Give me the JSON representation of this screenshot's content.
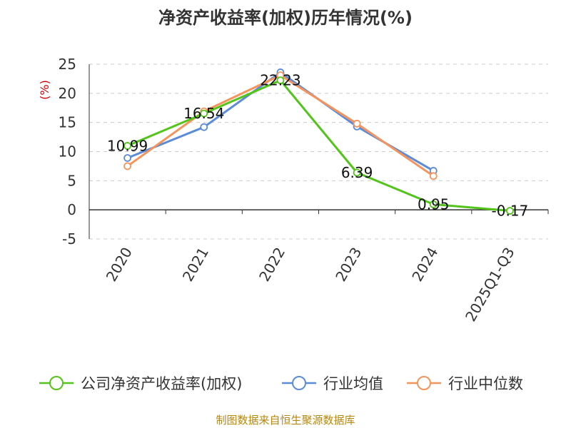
{
  "chart_data": {
    "type": "line",
    "title": "净资产收益率(加权)历年情况(%)",
    "ylabel": "(%)",
    "categories": [
      "2020",
      "2021",
      "2022",
      "2023",
      "2024",
      "2025Q1-Q3"
    ],
    "ylim": [
      -5,
      25
    ],
    "yticks": [
      -5,
      0,
      5,
      10,
      15,
      20,
      25
    ],
    "grid": "horizontal-dashed",
    "legend_position": "bottom",
    "series": [
      {
        "name": "公司净资产收益率(加权)",
        "color": "#52c41a",
        "values": [
          10.99,
          16.54,
          22.23,
          6.39,
          0.95,
          -0.17
        ],
        "labels": [
          "10.99",
          "16.54",
          "22.23",
          "6.39",
          "0.95",
          "-0.17"
        ]
      },
      {
        "name": "行业均值",
        "color": "#5b8bd9",
        "values": [
          8.9,
          14.2,
          23.6,
          14.3,
          6.7,
          null
        ]
      },
      {
        "name": "行业中位数",
        "color": "#f4945c",
        "values": [
          7.5,
          16.9,
          23.1,
          14.8,
          5.8,
          null
        ]
      }
    ]
  },
  "source": "制图数据来自恒生聚源数据库"
}
